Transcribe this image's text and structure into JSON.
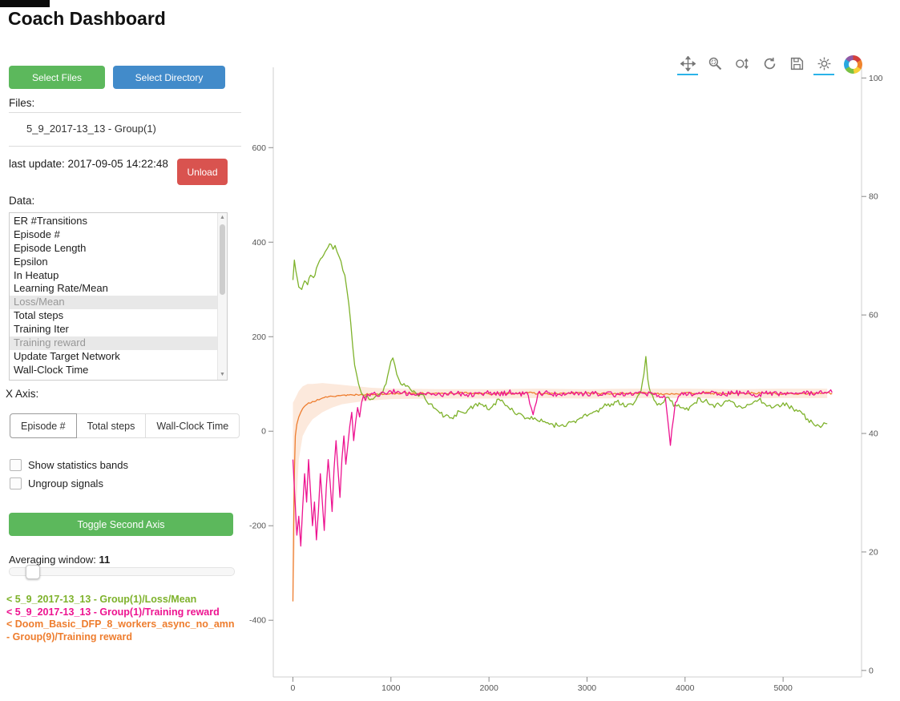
{
  "page": {
    "title": "Coach Dashboard"
  },
  "sidebar": {
    "select_files_label": "Select Files",
    "select_directory_label": "Select Directory",
    "files_label": "Files:",
    "files": [
      "5_9_2017-13_13 - Group(1)"
    ],
    "last_update": "last update: 2017-09-05 14:22:48",
    "unload_label": "Unload",
    "data_label": "Data:",
    "data_items": [
      {
        "label": "ER #Transitions",
        "selected": false
      },
      {
        "label": "Episode #",
        "selected": false
      },
      {
        "label": "Episode Length",
        "selected": false
      },
      {
        "label": "Epsilon",
        "selected": false
      },
      {
        "label": "In Heatup",
        "selected": false
      },
      {
        "label": "Learning Rate/Mean",
        "selected": false
      },
      {
        "label": "Loss/Mean",
        "selected": true
      },
      {
        "label": "Total steps",
        "selected": false
      },
      {
        "label": "Training Iter",
        "selected": false
      },
      {
        "label": "Training reward",
        "selected": true
      },
      {
        "label": "Update Target Network",
        "selected": false
      },
      {
        "label": "Wall-Clock Time",
        "selected": false
      }
    ],
    "x_axis_label": "X Axis:",
    "x_axis_options": [
      {
        "label": "Episode #",
        "active": true
      },
      {
        "label": "Total steps",
        "active": false
      },
      {
        "label": "Wall-Clock Time",
        "active": false
      }
    ],
    "checkboxes": [
      {
        "label": "Show statistics bands",
        "checked": false
      },
      {
        "label": "Ungroup signals",
        "checked": false
      }
    ],
    "toggle_second_axis_label": "Toggle Second Axis",
    "averaging_window_label": "Averaging window:",
    "averaging_window_value": "11",
    "legend": [
      {
        "text": "< 5_9_2017-13_13 - Group(1)/Loss/Mean",
        "color": "#7eb22b"
      },
      {
        "text": "< 5_9_2017-13_13 - Group(1)/Training reward",
        "color": "#ed1390"
      },
      {
        "text": "< Doom_Basic_DFP_8_workers_async_no_amn - Group(9)/Training reward",
        "color": "#ee7d2e"
      }
    ]
  },
  "toolbar": {
    "tools": [
      {
        "name": "pan",
        "active": true
      },
      {
        "name": "box-zoom",
        "active": false
      },
      {
        "name": "wheel-zoom",
        "active": false
      },
      {
        "name": "reset",
        "active": false
      },
      {
        "name": "save",
        "active": false
      },
      {
        "name": "hover",
        "active": true
      }
    ]
  },
  "chart_data": {
    "type": "line",
    "title": "",
    "xlabel": "",
    "ylabel": "",
    "grid": false,
    "legend_position": "sidebar",
    "x_range": [
      -200,
      5800
    ],
    "y_left_range": [
      -520,
      770
    ],
    "y_right_range": [
      -1.1,
      101.8
    ],
    "x_ticks": [
      0,
      1000,
      2000,
      3000,
      4000,
      5000
    ],
    "y_left_ticks": [
      -400,
      -200,
      0,
      200,
      400,
      600
    ],
    "y_right_ticks": [
      0,
      20,
      40,
      60,
      80,
      100
    ],
    "series": [
      {
        "name": "5_9_2017-13_13 - Group(1)/Loss/Mean",
        "color": "#7eb22b",
        "axis": "left",
        "noise": 6,
        "x": [
          0,
          15,
          30,
          60,
          90,
          120,
          150,
          180,
          210,
          240,
          270,
          300,
          330,
          360,
          390,
          410,
          430,
          450,
          470,
          490,
          510,
          530,
          550,
          570,
          590,
          610,
          630,
          650,
          670,
          700,
          730,
          760,
          800,
          850,
          900,
          950,
          980,
          1000,
          1020,
          1040,
          1060,
          1080,
          1100,
          1150,
          1200,
          1250,
          1300,
          1350,
          1400,
          1450,
          1500,
          1550,
          1600,
          1650,
          1700,
          1750,
          1800,
          1850,
          1900,
          1950,
          2000,
          2050,
          2100,
          2150,
          2200,
          2250,
          2300,
          2350,
          2400,
          2450,
          2500,
          2550,
          2600,
          2650,
          2700,
          2750,
          2800,
          2850,
          2900,
          2950,
          3000,
          3050,
          3100,
          3150,
          3200,
          3250,
          3300,
          3350,
          3400,
          3450,
          3500,
          3550,
          3580,
          3600,
          3620,
          3650,
          3700,
          3750,
          3800,
          3850,
          3900,
          3950,
          4000,
          4050,
          4100,
          4150,
          4200,
          4250,
          4300,
          4350,
          4400,
          4450,
          4500,
          4550,
          4600,
          4650,
          4700,
          4750,
          4800,
          4850,
          4900,
          4950,
          5000,
          5050,
          5100,
          5150,
          5200,
          5250,
          5300,
          5350,
          5400,
          5450
        ],
        "y": [
          320,
          362,
          340,
          305,
          300,
          318,
          310,
          330,
          325,
          345,
          360,
          368,
          380,
          390,
          395,
          385,
          393,
          380,
          370,
          360,
          340,
          330,
          300,
          270,
          230,
          180,
          140,
          120,
          100,
          80,
          70,
          75,
          68,
          75,
          80,
          100,
          130,
          148,
          155,
          140,
          120,
          110,
          100,
          95,
          88,
          82,
          78,
          68,
          58,
          48,
          38,
          32,
          28,
          34,
          42,
          38,
          48,
          55,
          60,
          52,
          45,
          58,
          68,
          60,
          50,
          42,
          38,
          32,
          28,
          25,
          22,
          20,
          18,
          15,
          12,
          14,
          16,
          20,
          24,
          28,
          32,
          38,
          44,
          48,
          54,
          58,
          62,
          56,
          52,
          58,
          66,
          85,
          120,
          158,
          110,
          80,
          62,
          56,
          70,
          64,
          56,
          50,
          46,
          52,
          60,
          70,
          64,
          56,
          50,
          56,
          62,
          66,
          60,
          54,
          50,
          56,
          62,
          66,
          60,
          54,
          50,
          56,
          60,
          54,
          48,
          42,
          36,
          26,
          18,
          14,
          12,
          16
        ]
      },
      {
        "name": "5_9_2017-13_13 - Group(1)/Training reward",
        "color": "#ed1390",
        "axis": "left",
        "noise": 6,
        "x": [
          0,
          20,
          40,
          60,
          80,
          100,
          120,
          140,
          160,
          180,
          200,
          220,
          240,
          260,
          280,
          300,
          320,
          340,
          360,
          380,
          400,
          420,
          440,
          460,
          480,
          500,
          520,
          540,
          560,
          580,
          600,
          620,
          640,
          660,
          680,
          700,
          720,
          740,
          760,
          800,
          850,
          900,
          950,
          1000,
          1100,
          1200,
          1300,
          1400,
          1500,
          1600,
          1700,
          1800,
          1900,
          2000,
          2100,
          2200,
          2300,
          2400,
          2450,
          2500,
          2600,
          2700,
          2800,
          2900,
          3000,
          3100,
          3200,
          3300,
          3400,
          3500,
          3600,
          3700,
          3800,
          3850,
          3900,
          3950,
          4000,
          4100,
          4200,
          4300,
          4400,
          4500,
          4600,
          4700,
          4800,
          4900,
          5000,
          5100,
          5200,
          5300,
          5400,
          5500
        ],
        "y": [
          -60,
          -140,
          -220,
          -180,
          -243,
          -160,
          -90,
          -150,
          -60,
          -130,
          -200,
          -150,
          -230,
          -170,
          -90,
          -150,
          -210,
          -120,
          -60,
          -110,
          -170,
          -80,
          -20,
          -80,
          -140,
          -60,
          -10,
          -70,
          -30,
          10,
          40,
          -20,
          20,
          50,
          30,
          60,
          75,
          65,
          78,
          80,
          76,
          82,
          78,
          85,
          80,
          78,
          82,
          80,
          78,
          82,
          80,
          78,
          82,
          80,
          78,
          82,
          80,
          76,
          35,
          80,
          82,
          78,
          80,
          82,
          78,
          80,
          82,
          78,
          80,
          82,
          78,
          80,
          70,
          -30,
          60,
          76,
          82,
          78,
          80,
          82,
          78,
          80,
          82,
          78,
          80,
          82,
          78,
          80,
          82,
          78,
          80,
          82
        ]
      },
      {
        "name": "Doom_Basic_DFP_8_workers_async_no_amn - Group(9)/Training reward",
        "color": "#ee7d2e",
        "axis": "left",
        "noise": 2,
        "band_color": "#ee7d2e",
        "band": {
          "x": [
            0,
            30,
            60,
            100,
            150,
            200,
            300,
            400,
            500,
            600,
            700,
            800,
            1000,
            1500,
            2000,
            2500,
            3000,
            3500,
            4000,
            4500,
            5000,
            5450
          ],
          "upper": [
            60,
            72,
            85,
            95,
            100,
            100,
            102,
            100,
            98,
            96,
            94,
            92,
            90,
            89,
            89,
            90,
            89,
            90,
            90,
            89,
            90,
            90
          ],
          "lower": [
            -370,
            -180,
            -60,
            -10,
            10,
            25,
            40,
            50,
            57,
            60,
            63,
            65,
            68,
            69,
            69,
            70,
            69,
            70,
            70,
            69,
            70,
            70
          ]
        },
        "x": [
          0,
          8,
          16,
          25,
          40,
          60,
          80,
          100,
          130,
          160,
          200,
          250,
          300,
          350,
          400,
          450,
          500,
          600,
          700,
          800,
          900,
          1000,
          1200,
          1400,
          1600,
          1800,
          2000,
          2200,
          2400,
          2600,
          2800,
          3000,
          3200,
          3400,
          3600,
          3800,
          4000,
          4200,
          4400,
          4600,
          4800,
          5000,
          5200,
          5400,
          5500
        ],
        "y": [
          -360,
          -200,
          -80,
          -10,
          15,
          30,
          40,
          48,
          55,
          60,
          63,
          67,
          70,
          72,
          74,
          75,
          76,
          77,
          78,
          78,
          79,
          80,
          81,
          79,
          80,
          81,
          79,
          80,
          81,
          79,
          80,
          81,
          79,
          80,
          81,
          79,
          80,
          81,
          79,
          80,
          81,
          79,
          80,
          81,
          80
        ]
      }
    ]
  }
}
